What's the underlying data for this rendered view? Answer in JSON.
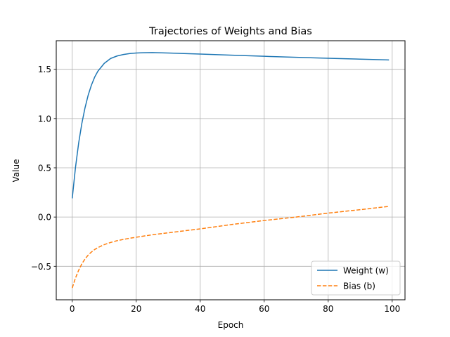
{
  "chart_data": {
    "type": "line",
    "title": "Trajectories of Weights and Bias",
    "xlabel": "Epoch",
    "ylabel": "Value",
    "xlim": [
      -5,
      104
    ],
    "ylim": [
      -0.84,
      1.79
    ],
    "xticks": [
      0,
      20,
      40,
      60,
      80,
      100
    ],
    "yticks": [
      -0.5,
      0.0,
      0.5,
      1.0,
      1.5
    ],
    "xtick_labels": [
      "0",
      "20",
      "40",
      "60",
      "80",
      "100"
    ],
    "ytick_labels": [
      "−0.5",
      "0.0",
      "0.5",
      "1.0",
      "1.5"
    ],
    "grid": true,
    "legend_position": "lower-right",
    "series": [
      {
        "name": "Weight (w)",
        "color": "#1f77b4",
        "style": "solid",
        "x": [
          0,
          1,
          2,
          3,
          4,
          5,
          6,
          7,
          8,
          10,
          12,
          14,
          16,
          18,
          20,
          22,
          25,
          30,
          40,
          50,
          60,
          70,
          80,
          90,
          99
        ],
        "y": [
          0.19,
          0.5,
          0.75,
          0.95,
          1.11,
          1.24,
          1.34,
          1.42,
          1.48,
          1.56,
          1.61,
          1.635,
          1.65,
          1.66,
          1.665,
          1.668,
          1.67,
          1.665,
          1.655,
          1.643,
          1.632,
          1.622,
          1.612,
          1.603,
          1.595
        ]
      },
      {
        "name": "Bias (b)",
        "color": "#ff7f0e",
        "style": "dashed",
        "x": [
          0,
          1,
          2,
          3,
          4,
          5,
          6,
          7,
          8,
          10,
          12,
          14,
          16,
          18,
          20,
          25,
          30,
          40,
          50,
          60,
          70,
          80,
          90,
          99
        ],
        "y": [
          -0.72,
          -0.62,
          -0.54,
          -0.475,
          -0.425,
          -0.385,
          -0.355,
          -0.33,
          -0.31,
          -0.28,
          -0.258,
          -0.24,
          -0.227,
          -0.215,
          -0.205,
          -0.18,
          -0.16,
          -0.12,
          -0.075,
          -0.035,
          0.0,
          0.04,
          0.075,
          0.108
        ]
      }
    ]
  }
}
